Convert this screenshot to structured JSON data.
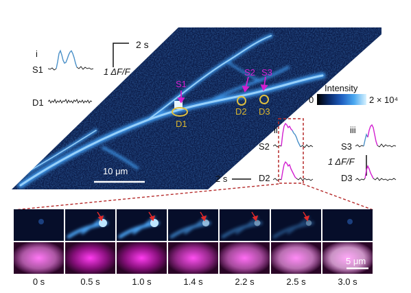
{
  "panel_i": {
    "label": "i",
    "trace_labels": [
      "S1",
      "D1"
    ],
    "scale_time": "2 s",
    "scale_df": "1 ΔF/F"
  },
  "main_image": {
    "spine_labels": [
      "S1",
      "S2",
      "S3"
    ],
    "dendrite_labels": [
      "D1",
      "D2",
      "D3"
    ],
    "scale_bar": "10 μm"
  },
  "colorbar": {
    "title": "Intensity",
    "min": "0",
    "max": "2 × 10⁴"
  },
  "panel_ii": {
    "label": "ii",
    "trace_labels": [
      "S2",
      "D2"
    ],
    "scale_time": "2 s"
  },
  "panel_iii": {
    "label": "iii",
    "trace_labels": [
      "S3",
      "D3"
    ],
    "scale_df": "1 ΔF/F"
  },
  "timelapse": {
    "times": [
      "0 s",
      "0.5 s",
      "1.0 s",
      "1.4 s",
      "2.2 s",
      "2.5 s",
      "3.0 s"
    ],
    "scale_bar": "5 μm"
  },
  "colors": {
    "magenta": "#d21fd0",
    "blue_trace": "#4a90c8",
    "yellow_roi": "#e0c040",
    "red_dashed": "#b52a2a",
    "image_bg": "#0c1d4a"
  }
}
